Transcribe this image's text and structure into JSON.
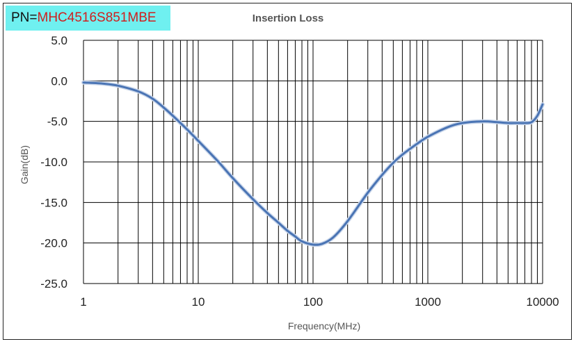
{
  "header": {
    "pn_prefix": "PN=",
    "pn_value": "MHC4516S851MBE"
  },
  "colors": {
    "pn_background": "#6ff0f0",
    "pn_value_text": "#d01e1e",
    "series_line": "#4a74b4",
    "grid": "#000000"
  },
  "chart_data": {
    "type": "line",
    "title": "Insertion Loss",
    "xlabel": "Frequency(MHz)",
    "ylabel": "Gain(dB)",
    "xscale": "log",
    "xlim": [
      1,
      10000
    ],
    "ylim": [
      -25,
      5
    ],
    "grid": true,
    "legend": "none",
    "xticks": [
      1,
      10,
      100,
      1000,
      10000
    ],
    "xtick_labels": [
      "1",
      "10",
      "100",
      "1000",
      "10000"
    ],
    "yticks": [
      5,
      0,
      -5,
      -10,
      -15,
      -20,
      -25
    ],
    "ytick_labels": [
      "5.0",
      "0.0",
      "-5.0",
      "-10.0",
      "-15.0",
      "-20.0",
      "-25.0"
    ],
    "series": [
      {
        "x": [
          1,
          1.5,
          2,
          3,
          4,
          5,
          6,
          7,
          8,
          10,
          15,
          20,
          30,
          40,
          50,
          60,
          70,
          80,
          100,
          120,
          150,
          200,
          300,
          400,
          500,
          600,
          800,
          1000,
          1500,
          2000,
          3000,
          4000,
          5000,
          6000,
          7000,
          8000,
          9000,
          10000
        ],
        "y": [
          -0.2,
          -0.35,
          -0.6,
          -1.3,
          -2.2,
          -3.3,
          -4.3,
          -5.2,
          -6.0,
          -7.4,
          -10.0,
          -12.0,
          -14.6,
          -16.3,
          -17.5,
          -18.5,
          -19.2,
          -19.8,
          -20.2,
          -20.1,
          -19.3,
          -17.3,
          -13.8,
          -11.6,
          -10.1,
          -9.1,
          -7.8,
          -6.9,
          -5.7,
          -5.2,
          -5.0,
          -5.1,
          -5.2,
          -5.2,
          -5.2,
          -5.1,
          -4.3,
          -2.9
        ]
      }
    ]
  }
}
